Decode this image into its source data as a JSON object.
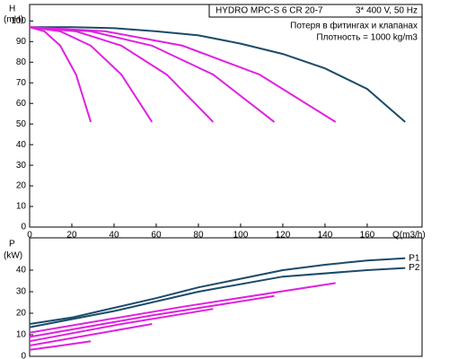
{
  "chart_data": [
    {
      "type": "line",
      "y_label": "H",
      "y_unit": "(mH)",
      "x_label": "Q(m3/h)",
      "annotations": [
        "HYDRO MPC-S 6 CR 20-7",
        "3* 400 V, 50 Hz",
        "Потеря в фитингах и клапанах",
        "Плотность = 1000 kg/m3"
      ],
      "xlim": [
        0,
        186
      ],
      "xticks": [
        0,
        20,
        40,
        60,
        80,
        100,
        120,
        140,
        160
      ],
      "ylim": [
        0,
        108
      ],
      "yticks": [
        0,
        10,
        20,
        30,
        40,
        50,
        60,
        70,
        80,
        90,
        100
      ],
      "grid": false,
      "series": [
        {
          "color": "#1b4a6b",
          "x": [
            0,
            20,
            40,
            60,
            80,
            100,
            120,
            140,
            160,
            178
          ],
          "values": [
            97,
            97,
            96.5,
            95,
            93,
            89,
            84,
            77,
            67,
            51
          ]
        },
        {
          "color": "#e020e0",
          "x": [
            0,
            7,
            14.5,
            22,
            29
          ],
          "values": [
            97,
            95,
            88,
            74,
            51
          ]
        },
        {
          "color": "#e020e0",
          "x": [
            0,
            14.5,
            29,
            43.5,
            58
          ],
          "values": [
            97,
            95,
            88,
            74,
            51
          ]
        },
        {
          "color": "#e020e0",
          "x": [
            0,
            22,
            43.5,
            65,
            87
          ],
          "values": [
            97,
            95,
            88,
            74,
            51
          ]
        },
        {
          "color": "#e020e0",
          "x": [
            0,
            29,
            58,
            87,
            116
          ],
          "values": [
            97,
            95,
            88,
            74,
            51
          ]
        },
        {
          "color": "#e020e0",
          "x": [
            0,
            36,
            72.5,
            109,
            145
          ],
          "values": [
            97,
            95,
            88,
            74,
            51
          ]
        }
      ]
    },
    {
      "type": "line",
      "y_label": "P",
      "y_unit": "(kW)",
      "xlim": [
        0,
        186
      ],
      "ylim": [
        0,
        55
      ],
      "yticks": [
        0,
        10,
        20,
        30,
        40
      ],
      "grid": false,
      "series": [
        {
          "name": "P1",
          "color": "#1b4a6b",
          "x": [
            0,
            20,
            40,
            60,
            80,
            100,
            120,
            140,
            160,
            178
          ],
          "values": [
            15,
            18,
            22.5,
            27,
            32,
            36,
            40,
            42.5,
            44.5,
            45.5
          ]
        },
        {
          "name": "P2",
          "color": "#1b4a6b",
          "x": [
            0,
            40,
            80,
            120,
            160,
            178
          ],
          "values": [
            13.5,
            21,
            30,
            37,
            40,
            41
          ]
        },
        {
          "color": "#e020e0",
          "x": [
            0,
            15,
            29
          ],
          "values": [
            3,
            5,
            7
          ]
        },
        {
          "color": "#e020e0",
          "x": [
            0,
            29,
            58
          ],
          "values": [
            5,
            10,
            15
          ]
        },
        {
          "color": "#e020e0",
          "x": [
            0,
            43.5,
            87
          ],
          "values": [
            7,
            15,
            22
          ]
        },
        {
          "color": "#e020e0",
          "x": [
            0,
            58,
            116
          ],
          "values": [
            9,
            19,
            28
          ]
        },
        {
          "color": "#e020e0",
          "x": [
            0,
            72.5,
            145
          ],
          "values": [
            11,
            23,
            34
          ]
        }
      ]
    }
  ]
}
